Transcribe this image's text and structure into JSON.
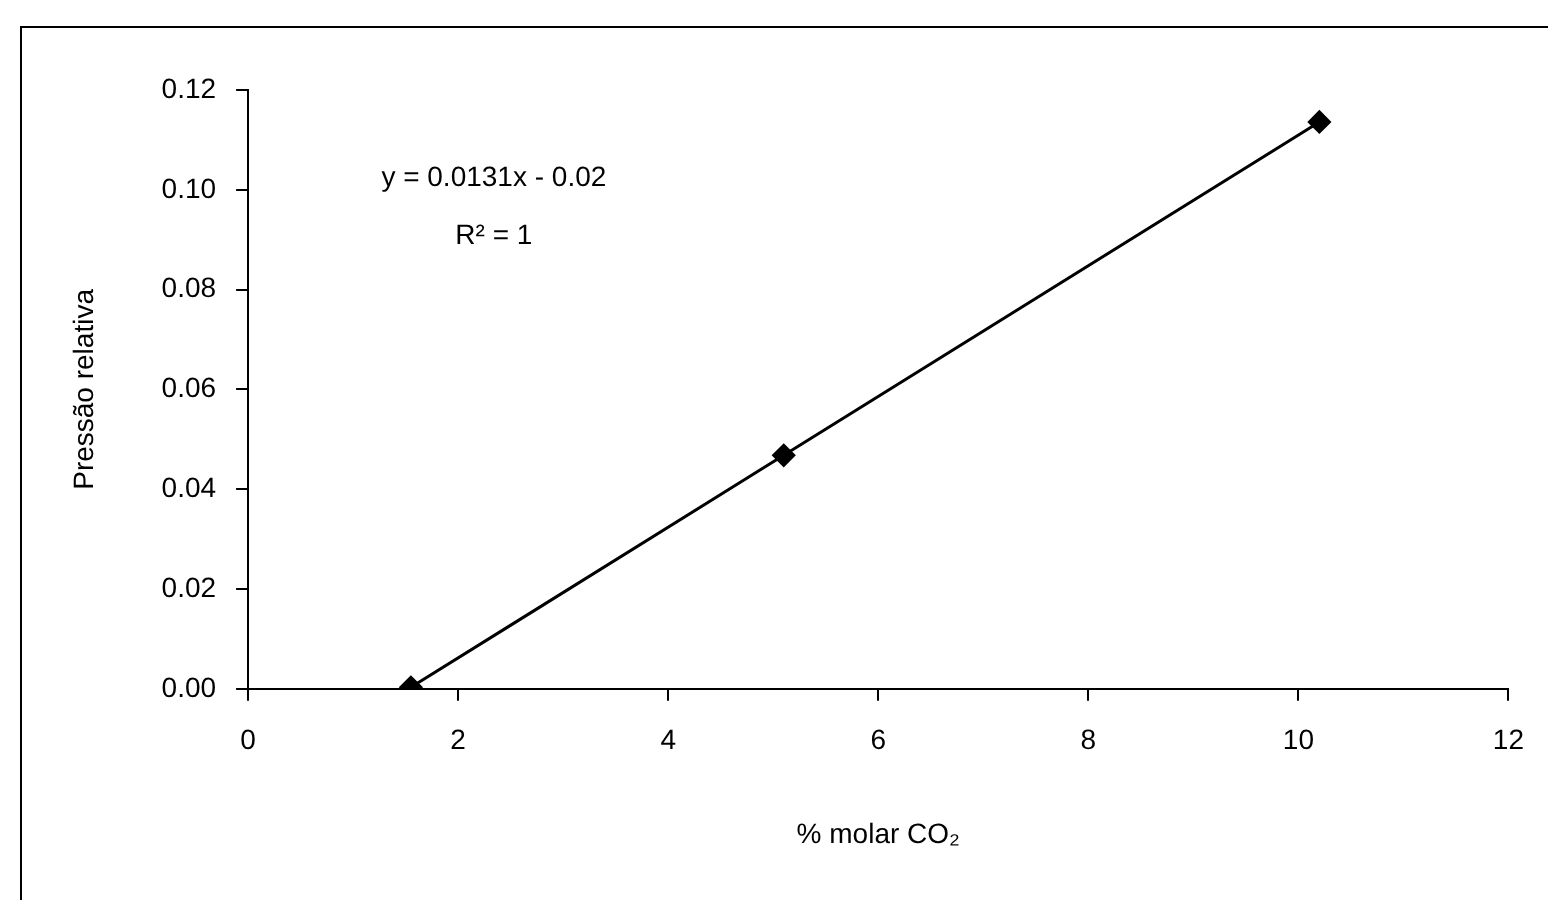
{
  "chart_data": {
    "type": "line",
    "xlabel": "% molar CO₂",
    "ylabel": "Pressão relativa",
    "x": [
      1.55,
      5.1,
      10.2
    ],
    "series": [
      {
        "color": "#000000",
        "values": [
          0.0003,
          0.0468,
          0.1136
        ]
      }
    ],
    "xlim": [
      0,
      12
    ],
    "xticks": [
      0,
      2,
      4,
      6,
      8,
      10,
      12
    ],
    "ylim": [
      0,
      0.12
    ],
    "yticks": [
      {
        "value": 0,
        "label": "0.00"
      },
      {
        "value": 0.02,
        "label": "0.02"
      },
      {
        "value": 0.04,
        "label": "0.04"
      },
      {
        "value": 0.06,
        "label": "0.06"
      },
      {
        "value": 0.08,
        "label": "0.08"
      },
      {
        "value": 0.1,
        "label": "0.10"
      },
      {
        "value": 0.12,
        "label": "0.12"
      }
    ],
    "annotations": [
      "y = 0.0131x - 0.02",
      "R² = 1"
    ],
    "grid": false,
    "legend": false,
    "marker": "diamond",
    "line_style": "solid"
  }
}
